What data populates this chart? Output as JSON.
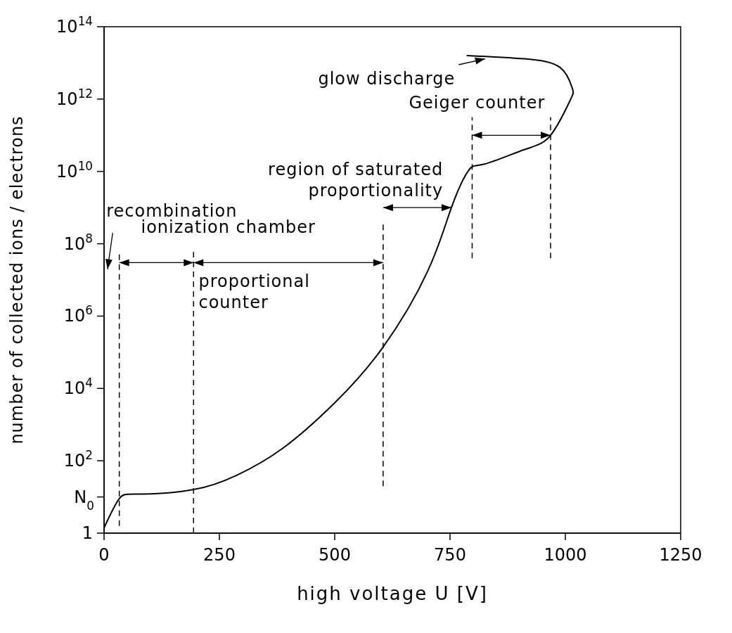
{
  "chart_data": {
    "type": "line",
    "xlabel": "high voltage  U [V]",
    "ylabel": "number of collected ions / electrons",
    "x": [
      0,
      33,
      77,
      194,
      288,
      387,
      500,
      605,
      702,
      753,
      791,
      825,
      911,
      968,
      1010,
      1015,
      989,
      911,
      786
    ],
    "series": [
      {
        "color": "#000000",
        "values": [
          1.4,
          9,
          12,
          16,
          40,
          220,
          4000,
          140000,
          18000000,
          1000000000,
          11000000000,
          16000000000,
          40000000000,
          100000000000,
          900000000000,
          2000000000000,
          7400000000000,
          13000000000000,
          16000000000000
        ]
      }
    ],
    "xlim": [
      0,
      1250
    ],
    "xticks": [
      0,
      250,
      500,
      750,
      1000,
      1250
    ],
    "ylim": [
      1,
      100000000000000.0
    ],
    "yticks": [
      1,
      {
        "value": 10,
        "label": null
      },
      {
        "value": 100,
        "label": "10$^{2}$"
      },
      {
        "value": 10000,
        "label": "10$^{4}$"
      },
      {
        "value": 1000000,
        "label": "10$^{6}$"
      },
      {
        "value": 100000000,
        "label": "10$^{8}$"
      },
      {
        "value": 10000000000,
        "label": "10$^{10}$"
      },
      {
        "value": 1000000000000,
        "label": "10$^{12}$"
      },
      {
        "value": 100000000000000,
        "label": "10$^{14}$"
      }
    ],
    "log": "y",
    "marker": "none",
    "line_style": "solid",
    "ref_lines": [
      {
        "axis": "x",
        "value": 33,
        "line_style": "dashed"
      },
      {
        "axis": "x",
        "value": 194,
        "line_style": "dashed"
      },
      {
        "axis": "x",
        "value": 605,
        "line_style": "dashed"
      },
      {
        "axis": "x",
        "value": 798,
        "line_style": "dashed"
      },
      {
        "axis": "x",
        "value": 968,
        "line_style": "dashed"
      }
    ],
    "annotations": [
      {
        "text": "glow discharge",
        "x": 826,
        "y": 13000000000000
      },
      {
        "text": "Geiger counter",
        "x": 968,
        "y": 100000000000
      },
      {
        "text": "region of saturated\nproportionality",
        "x": 753,
        "y": 1000000000
      },
      "recombination",
      {
        "text": "ionization chamber",
        "x": 194,
        "y": 30000000
      },
      {
        "text": "proportional\ncounter",
        "x": 605,
        "y": 30000000
      },
      "N$_{0}$"
    ]
  }
}
